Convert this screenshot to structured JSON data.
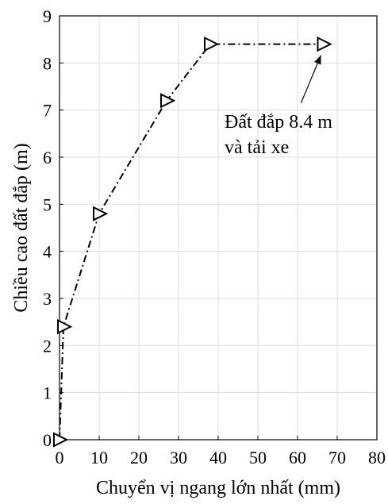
{
  "chart_data": {
    "type": "line",
    "xlabel": "Chuyển vị ngang lớn nhất (mm)",
    "ylabel": "Chiều cao đất đắp (m)",
    "xlim": [
      0,
      80
    ],
    "ylim": [
      0,
      9
    ],
    "xticks": [
      "0",
      "10",
      "20",
      "30",
      "40",
      "50",
      "60",
      "70",
      "80"
    ],
    "yticks": [
      "0",
      "1",
      "2",
      "3",
      "4",
      "5",
      "6",
      "7",
      "8",
      "9"
    ],
    "grid": true,
    "series": [
      {
        "x": [
          0,
          1,
          10,
          27,
          38,
          66.5
        ],
        "y": [
          0,
          2.4,
          4.8,
          7.2,
          8.4,
          8.4
        ],
        "marker": "triangle-right",
        "line_style": "dash-dot",
        "color": "#000000"
      }
    ],
    "annotation": {
      "lines": [
        "Đất đắp 8.4 m",
        "và tải xe"
      ],
      "arrow_to": [
        66.5,
        8.4
      ]
    }
  }
}
